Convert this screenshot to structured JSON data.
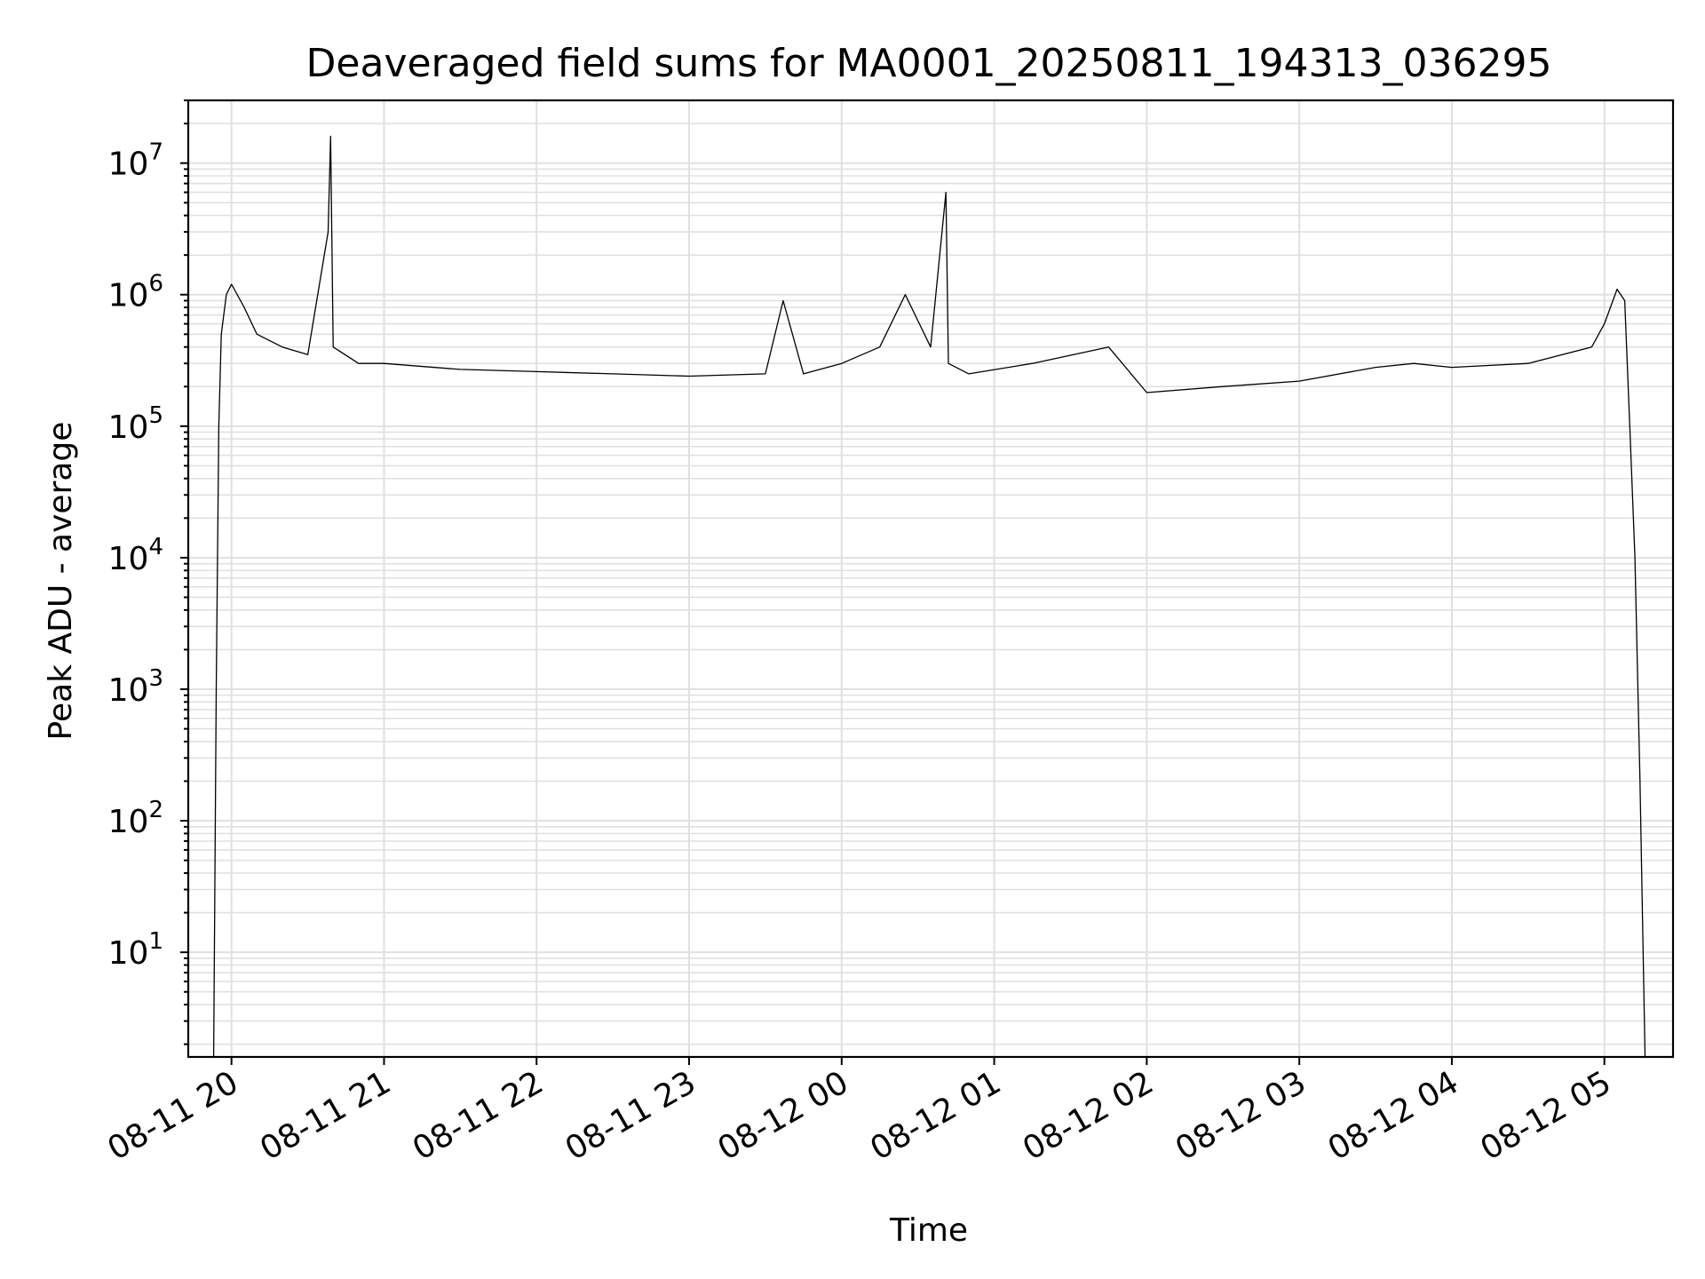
{
  "chart_data": {
    "type": "line",
    "title": "Deaveraged field sums for MA0001_20250811_194313_036295",
    "xlabel": "Time",
    "ylabel": "Peak ADU - average",
    "yscale": "log",
    "ylim": [
      1.6,
      30000000
    ],
    "xlim": [
      "2025-08-11 19:43",
      "2025-08-12 05:27"
    ],
    "grid": true,
    "colors": {
      "line": "#000000",
      "grid": "#e0e0e0",
      "axes": "#000000",
      "background": "#ffffff"
    },
    "x_ticks": [
      {
        "label": "08-11 20",
        "time": "2025-08-11 20:00"
      },
      {
        "label": "08-11 21",
        "time": "2025-08-11 21:00"
      },
      {
        "label": "08-11 22",
        "time": "2025-08-11 22:00"
      },
      {
        "label": "08-11 23",
        "time": "2025-08-11 23:00"
      },
      {
        "label": "08-12 00",
        "time": "2025-08-12 00:00"
      },
      {
        "label": "08-12 01",
        "time": "2025-08-12 01:00"
      },
      {
        "label": "08-12 02",
        "time": "2025-08-12 02:00"
      },
      {
        "label": "08-12 03",
        "time": "2025-08-12 03:00"
      },
      {
        "label": "08-12 04",
        "time": "2025-08-12 04:00"
      },
      {
        "label": "08-12 05",
        "time": "2025-08-12 05:00"
      }
    ],
    "y_ticks": [
      {
        "base": "10",
        "exp": "1",
        "value": 10
      },
      {
        "base": "10",
        "exp": "2",
        "value": 100
      },
      {
        "base": "10",
        "exp": "3",
        "value": 1000
      },
      {
        "base": "10",
        "exp": "4",
        "value": 10000
      },
      {
        "base": "10",
        "exp": "5",
        "value": 100000
      },
      {
        "base": "10",
        "exp": "6",
        "value": 1000000
      },
      {
        "base": "10",
        "exp": "7",
        "value": 10000000
      }
    ],
    "series": [
      {
        "x": [
          "2025-08-11 19:53",
          "2025-08-11 19:54",
          "2025-08-11 19:55",
          "2025-08-11 19:56",
          "2025-08-11 19:58",
          "2025-08-11 20:00",
          "2025-08-11 20:05",
          "2025-08-11 20:10",
          "2025-08-11 20:20",
          "2025-08-11 20:30",
          "2025-08-11 20:38",
          "2025-08-11 20:39",
          "2025-08-11 20:40",
          "2025-08-11 20:50",
          "2025-08-11 21:00",
          "2025-08-11 21:30",
          "2025-08-11 22:00",
          "2025-08-11 22:30",
          "2025-08-11 23:00",
          "2025-08-11 23:30",
          "2025-08-11 23:37",
          "2025-08-11 23:45",
          "2025-08-12 00:00",
          "2025-08-12 00:15",
          "2025-08-12 00:25",
          "2025-08-12 00:35",
          "2025-08-12 00:41",
          "2025-08-12 00:42",
          "2025-08-12 00:50",
          "2025-08-12 01:15",
          "2025-08-12 01:45",
          "2025-08-12 02:00",
          "2025-08-12 02:30",
          "2025-08-12 03:00",
          "2025-08-12 03:30",
          "2025-08-12 03:45",
          "2025-08-12 04:00",
          "2025-08-12 04:30",
          "2025-08-12 04:55",
          "2025-08-12 05:00",
          "2025-08-12 05:05",
          "2025-08-12 05:08",
          "2025-08-12 05:10",
          "2025-08-12 05:12",
          "2025-08-12 05:14",
          "2025-08-12 05:16"
        ],
        "values": [
          1.6,
          1000,
          100000,
          500000,
          1000000,
          1200000,
          800000,
          500000,
          400000,
          350000,
          3000000,
          16000000,
          400000,
          300000,
          300000,
          270000,
          260000,
          250000,
          240000,
          250000,
          900000,
          250000,
          300000,
          400000,
          1000000,
          400000,
          6000000,
          300000,
          250000,
          300000,
          400000,
          180000,
          200000,
          220000,
          280000,
          300000,
          280000,
          300000,
          400000,
          600000,
          1100000,
          900000,
          100000,
          10000,
          200,
          1.6
        ]
      }
    ]
  }
}
